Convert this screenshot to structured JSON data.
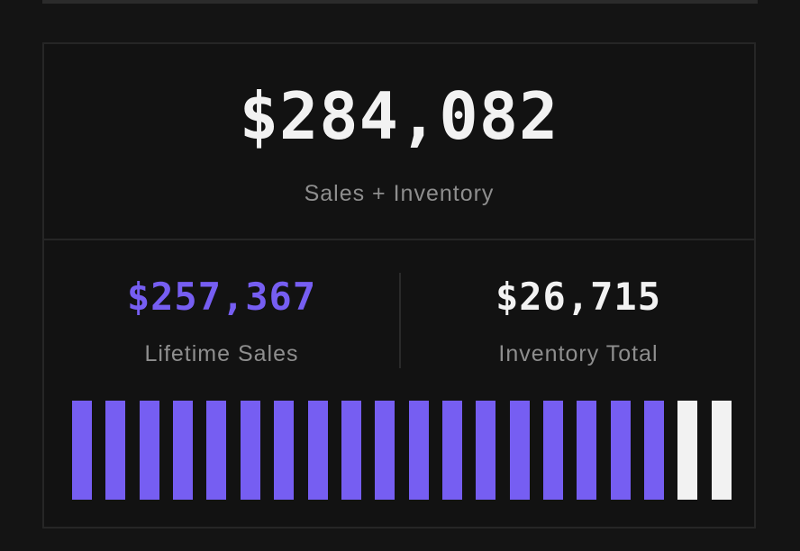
{
  "summary": {
    "total_value": "$284,082",
    "total_label": "Sales + Inventory"
  },
  "stats": {
    "lifetime_sales": {
      "value": "$257,367",
      "label": "Lifetime Sales",
      "color": "#765ef2"
    },
    "inventory_total": {
      "value": "$26,715",
      "label": "Inventory Total",
      "color": "#f2f2f2"
    }
  },
  "bar_meter": {
    "total_segments": 20,
    "filled_segments": 18,
    "filled_color": "#765ef2",
    "remaining_color": "#f2f2f2"
  }
}
